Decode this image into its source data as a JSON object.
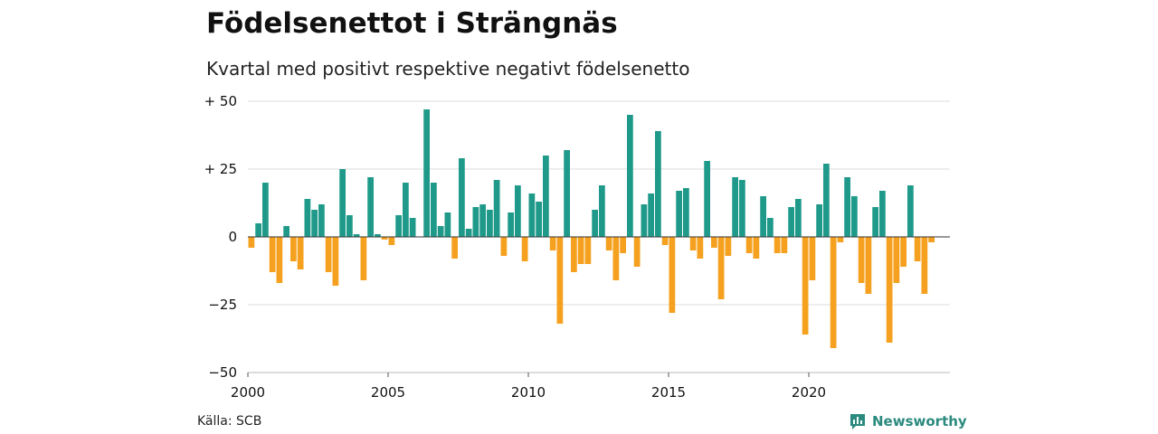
{
  "chart_data": {
    "type": "bar",
    "title": "Födelsenettot i Strängnäs",
    "subtitle": "Kvartal med positivt respektive negativt födelsenetto",
    "xlabel": "",
    "ylabel": "",
    "ylim": [
      -50,
      50
    ],
    "yticks": [
      {
        "value": 50,
        "label": "+ 50"
      },
      {
        "value": 25,
        "label": "+ 25"
      },
      {
        "value": 0,
        "label": "0"
      },
      {
        "value": -25,
        "label": "−25"
      },
      {
        "value": -50,
        "label": "−50"
      }
    ],
    "xticks": [
      "2000",
      "2005",
      "2010",
      "2015",
      "2020"
    ],
    "start": "2000 Q1",
    "grid": true,
    "colors": {
      "positive": "#1f9a8a",
      "negative": "#f5a11f",
      "grid": "#dddddd",
      "zero": "#333333"
    },
    "values": [
      -4,
      5,
      20,
      -13,
      -17,
      4,
      -9,
      -12,
      14,
      10,
      12,
      -13,
      -18,
      25,
      8,
      1,
      -16,
      22,
      1,
      -1,
      -3,
      8,
      20,
      7,
      0,
      47,
      20,
      4,
      9,
      -8,
      29,
      3,
      11,
      12,
      10,
      21,
      -7,
      9,
      19,
      -9,
      16,
      13,
      30,
      -5,
      -32,
      32,
      -13,
      -10,
      -10,
      10,
      19,
      -5,
      -16,
      -6,
      45,
      -11,
      12,
      16,
      39,
      -3,
      -28,
      17,
      18,
      -5,
      -8,
      28,
      -4,
      -23,
      -7,
      22,
      21,
      -6,
      -8,
      15,
      7,
      -6,
      -6,
      11,
      14,
      -36,
      -16,
      12,
      27,
      -41,
      -2,
      22,
      15,
      -17,
      -21,
      11,
      17,
      -39,
      -17,
      -11,
      19,
      -9,
      -21,
      -2
    ]
  },
  "footer": {
    "source": "Källa: SCB",
    "brand": "Newsworthy"
  },
  "icons": {
    "brand": "newsworthy-logo-icon"
  }
}
